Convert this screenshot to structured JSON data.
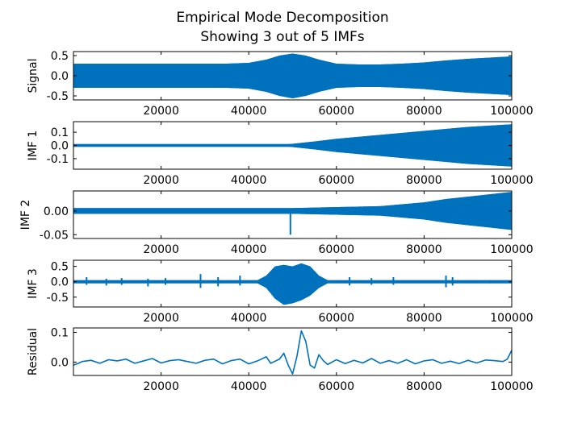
{
  "chart_data": {
    "type": "line",
    "title": "Empirical Mode Decomposition",
    "subtitle": "Showing 3 out of 5 IMFs",
    "x_range": [
      0,
      100000
    ],
    "x_ticks": [
      20000,
      40000,
      60000,
      80000,
      100000
    ],
    "x_tick_labels": [
      "20000",
      "40000",
      "60000",
      "80000",
      "100000"
    ],
    "line_color": "#0072bd",
    "panels": [
      {
        "id": "signal",
        "ylabel": "Signal",
        "ylim": [
          -0.6,
          0.6
        ],
        "y_ticks": [
          0.5,
          0.0,
          -0.5
        ],
        "y_tick_labels": [
          "0.5",
          "0.0",
          "-0.5"
        ],
        "render": "envelope",
        "envelope": {
          "x": [
            0,
            35000,
            40000,
            44000,
            47000,
            50000,
            53000,
            56000,
            60000,
            65000,
            70000,
            75000,
            80000,
            85000,
            90000,
            95000,
            100000
          ],
          "upper": [
            0.3,
            0.3,
            0.32,
            0.4,
            0.5,
            0.55,
            0.5,
            0.4,
            0.3,
            0.28,
            0.28,
            0.3,
            0.33,
            0.38,
            0.42,
            0.45,
            0.48
          ],
          "lower": [
            -0.3,
            -0.3,
            -0.32,
            -0.4,
            -0.5,
            -0.56,
            -0.5,
            -0.4,
            -0.3,
            -0.28,
            -0.28,
            -0.3,
            -0.33,
            -0.38,
            -0.42,
            -0.45,
            -0.48
          ]
        }
      },
      {
        "id": "imf1",
        "ylabel": "IMF 1",
        "ylim": [
          -0.18,
          0.18
        ],
        "y_ticks": [
          0.1,
          0.0,
          -0.1
        ],
        "y_tick_labels": [
          "0.1",
          "0.0",
          "-0.1"
        ],
        "render": "envelope",
        "envelope": {
          "x": [
            0,
            45000,
            49000,
            50000,
            55000,
            60000,
            70000,
            80000,
            90000,
            100000
          ],
          "upper": [
            0.01,
            0.01,
            0.01,
            0.012,
            0.03,
            0.05,
            0.08,
            0.11,
            0.14,
            0.16
          ],
          "lower": [
            -0.01,
            -0.01,
            -0.01,
            -0.012,
            -0.03,
            -0.05,
            -0.08,
            -0.11,
            -0.14,
            -0.16
          ]
        }
      },
      {
        "id": "imf2",
        "ylabel": "IMF 2",
        "ylim": [
          -0.058,
          0.042
        ],
        "y_ticks": [
          0.0,
          -0.05
        ],
        "y_tick_labels": [
          "0.00",
          "-0.05"
        ],
        "render": "envelope",
        "envelope": {
          "x": [
            0,
            40000,
            50000,
            60000,
            70000,
            75000,
            80000,
            85000,
            90000,
            95000,
            100000
          ],
          "upper": [
            0.006,
            0.006,
            0.006,
            0.008,
            0.01,
            0.014,
            0.018,
            0.025,
            0.03,
            0.035,
            0.04
          ],
          "lower": [
            -0.006,
            -0.006,
            -0.006,
            -0.008,
            -0.01,
            -0.014,
            -0.018,
            -0.025,
            -0.03,
            -0.035,
            -0.04
          ]
        },
        "spikes": [
          {
            "x": 49500,
            "y_top": 0.0,
            "y_bottom": -0.05
          }
        ]
      },
      {
        "id": "imf3",
        "ylabel": "IMF 3",
        "ylim": [
          -0.82,
          0.7
        ],
        "y_ticks": [
          0.5,
          0.0,
          -0.5
        ],
        "y_tick_labels": [
          "0.5",
          "0.0",
          "-0.5"
        ],
        "render": "envelope",
        "envelope": {
          "x": [
            0,
            42000,
            44000,
            46000,
            48000,
            50000,
            52000,
            54000,
            56000,
            58000,
            100000
          ],
          "upper": [
            0.05,
            0.05,
            0.2,
            0.5,
            0.55,
            0.5,
            0.6,
            0.5,
            0.2,
            0.05,
            0.05
          ],
          "lower": [
            -0.05,
            -0.05,
            -0.2,
            -0.55,
            -0.75,
            -0.7,
            -0.6,
            -0.45,
            -0.2,
            -0.05,
            -0.05
          ]
        },
        "spikes": [
          {
            "x": 3000,
            "y_top": 0.15,
            "y_bottom": -0.1
          },
          {
            "x": 7500,
            "y_top": 0.1,
            "y_bottom": -0.12
          },
          {
            "x": 11000,
            "y_top": 0.12,
            "y_bottom": -0.1
          },
          {
            "x": 17000,
            "y_top": 0.1,
            "y_bottom": -0.15
          },
          {
            "x": 21000,
            "y_top": 0.12,
            "y_bottom": -0.1
          },
          {
            "x": 29000,
            "y_top": 0.25,
            "y_bottom": -0.2
          },
          {
            "x": 33000,
            "y_top": 0.15,
            "y_bottom": -0.15
          },
          {
            "x": 38000,
            "y_top": 0.2,
            "y_bottom": -0.12
          },
          {
            "x": 63000,
            "y_top": 0.15,
            "y_bottom": -0.12
          },
          {
            "x": 68000,
            "y_top": 0.12,
            "y_bottom": -0.1
          },
          {
            "x": 73000,
            "y_top": 0.15,
            "y_bottom": -0.1
          },
          {
            "x": 85000,
            "y_top": 0.2,
            "y_bottom": -0.18
          },
          {
            "x": 86500,
            "y_top": 0.15,
            "y_bottom": -0.12
          },
          {
            "x": 95000,
            "y_top": 0.05,
            "y_bottom": -0.05
          }
        ]
      },
      {
        "id": "residual",
        "ylabel": "Residual",
        "ylim": [
          -0.045,
          0.115
        ],
        "y_ticks": [
          0.1,
          0.0
        ],
        "y_tick_labels": [
          "0.1",
          "0.0"
        ],
        "render": "line",
        "line": {
          "x": [
            0,
            1000,
            2000,
            4000,
            6000,
            8000,
            10000,
            12000,
            14000,
            16000,
            18000,
            20000,
            22000,
            24000,
            26000,
            28000,
            30000,
            32000,
            34000,
            36000,
            38000,
            40000,
            42000,
            44000,
            45000,
            46000,
            47000,
            48000,
            49000,
            50000,
            51000,
            52000,
            53000,
            54000,
            55000,
            56000,
            57000,
            58000,
            60000,
            62000,
            64000,
            66000,
            68000,
            70000,
            72000,
            74000,
            76000,
            78000,
            80000,
            82000,
            84000,
            86000,
            88000,
            90000,
            92000,
            94000,
            96000,
            98000,
            99000,
            100000
          ],
          "y": [
            -0.01,
            -0.005,
            0.002,
            0.006,
            -0.004,
            0.008,
            0.004,
            0.01,
            -0.004,
            0.004,
            0.012,
            -0.003,
            0.005,
            0.008,
            0.002,
            -0.004,
            0.006,
            0.01,
            -0.006,
            0.005,
            0.01,
            -0.006,
            0.004,
            0.018,
            -0.004,
            0.003,
            0.01,
            0.03,
            -0.01,
            -0.04,
            0.02,
            0.105,
            0.07,
            -0.01,
            -0.02,
            0.025,
            0.005,
            -0.008,
            0.008,
            -0.005,
            0.006,
            -0.003,
            0.012,
            -0.004,
            0.005,
            -0.004,
            0.008,
            -0.006,
            0.004,
            0.008,
            -0.004,
            0.003,
            -0.005,
            0.006,
            -0.003,
            0.007,
            0.005,
            0.002,
            0.01,
            0.04
          ]
        }
      }
    ]
  }
}
